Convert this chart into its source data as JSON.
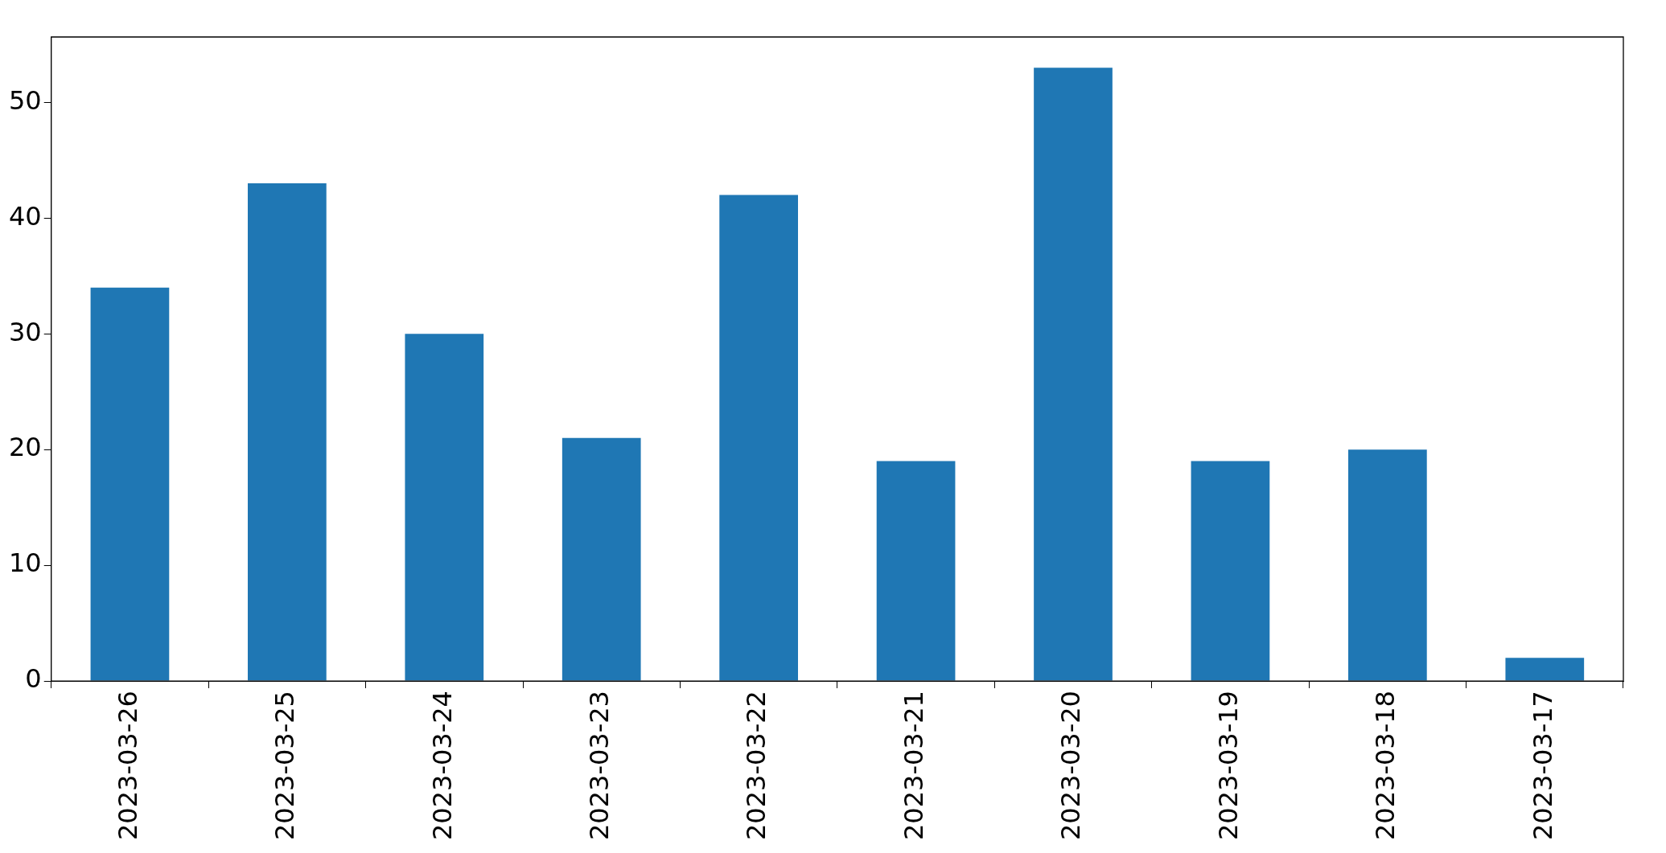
{
  "chart_data": {
    "type": "bar",
    "categories": [
      "2023-03-26",
      "2023-03-25",
      "2023-03-24",
      "2023-03-23",
      "2023-03-22",
      "2023-03-21",
      "2023-03-20",
      "2023-03-19",
      "2023-03-18",
      "2023-03-17"
    ],
    "values": [
      34,
      43,
      30,
      21,
      42,
      19,
      53,
      19,
      20,
      2
    ],
    "color": "#1f77b4",
    "ylim": [
      0,
      55.65
    ],
    "yticks": [
      0,
      10,
      20,
      30,
      40,
      50
    ],
    "grid": false,
    "legend": false
  }
}
